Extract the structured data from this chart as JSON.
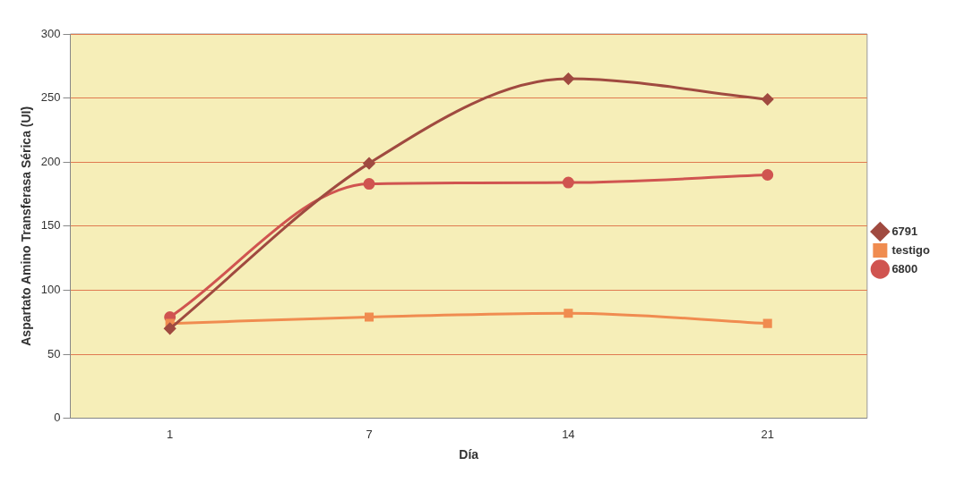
{
  "chart_data": {
    "type": "line",
    "xlabel": "Día",
    "ylabel": "Aspartato Amino Transferasa Sérica (UI)",
    "categories": [
      "1",
      "7",
      "14",
      "21"
    ],
    "series": [
      {
        "name": "6791",
        "color": "#a04a40",
        "marker": "diamond",
        "values": [
          70,
          199,
          265,
          249
        ]
      },
      {
        "name": "testigo",
        "color": "#f08c50",
        "marker": "square",
        "values": [
          74,
          79,
          82,
          74
        ]
      },
      {
        "name": "6800",
        "color": "#d05450",
        "marker": "circle",
        "values": [
          79,
          183,
          184,
          190
        ]
      }
    ],
    "ylim": [
      0,
      300
    ],
    "yticks": [
      0,
      50,
      100,
      150,
      200,
      250,
      300
    ],
    "grid": "y",
    "legend": "right"
  }
}
